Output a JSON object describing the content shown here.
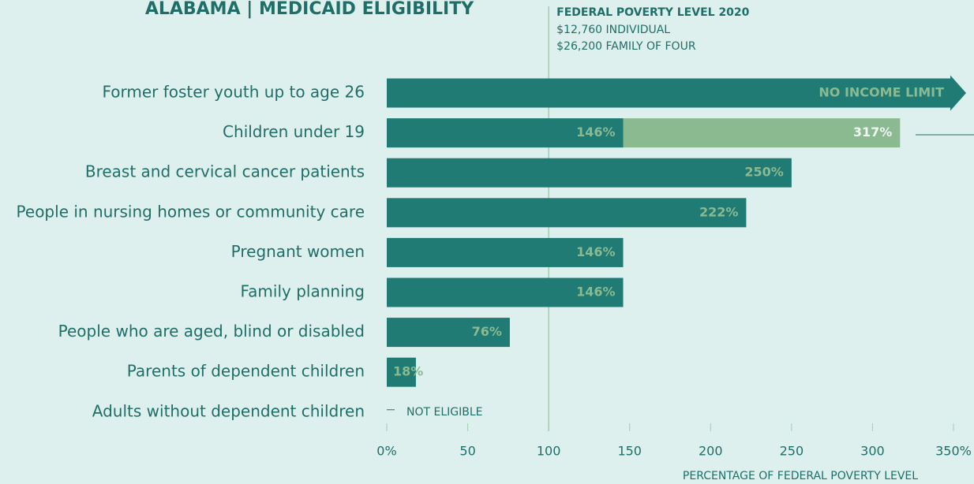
{
  "chart_data": {
    "type": "bar",
    "orientation": "horizontal",
    "title": "ALABAMA | MEDICAID ELIGIBILITY",
    "categories": [
      "Former foster youth up to age 26",
      "Children under 19",
      "Breast and cervical cancer patients",
      "People in nursing homes or community care",
      "Pregnant women",
      "Family planning",
      "People who are aged, blind or disabled",
      "Parents of dependent children",
      "Adults without dependent children"
    ],
    "series": [
      {
        "color": "#1f7b74",
        "values": [
          null,
          146,
          250,
          222,
          146,
          146,
          76,
          18,
          0
        ],
        "value_labels": [
          "NO INCOME LIMIT",
          "146%",
          "250%",
          "222%",
          "146%",
          "146%",
          "76%",
          "18%",
          "NOT ELIGIBLE"
        ]
      },
      {
        "color": "#8bba91",
        "values": [
          null,
          317,
          null,
          null,
          null,
          null,
          null,
          null,
          null
        ],
        "value_labels": [
          null,
          "317%",
          null,
          null,
          null,
          null,
          null,
          null,
          null
        ]
      }
    ],
    "xlim": [
      0,
      350
    ],
    "xticks": [
      {
        "value": 0,
        "label": "0%"
      },
      50,
      100,
      150,
      200,
      250,
      300,
      {
        "value": 350,
        "label": "350%"
      }
    ],
    "xlabel": "PERCENTAGE OF FEDERAL POVERTY LEVEL",
    "reference_line": {
      "value": 100,
      "label": "FEDERAL POVERTY LEVEL 2020",
      "notes": [
        "$12,760 INDIVIDUAL",
        "$26,200 FAMILY OF FOUR"
      ]
    }
  }
}
